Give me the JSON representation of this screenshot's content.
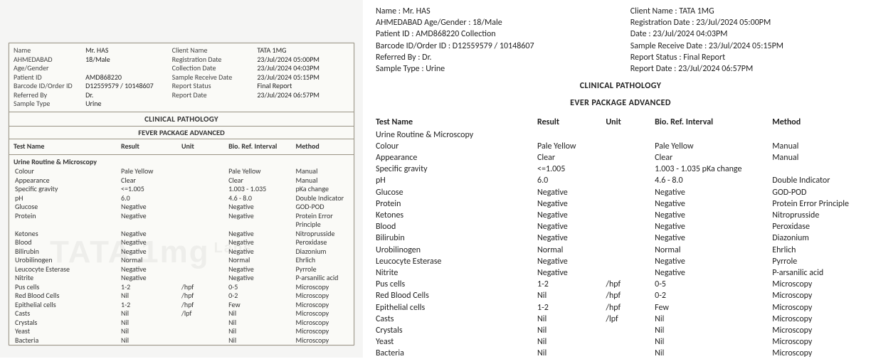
{
  "header": {
    "name_label": "Name",
    "name": "Mr. HAS",
    "age_gender_label": "AHMEDABAD  Age/Gender",
    "age_gender": "18/Male",
    "patient_id_label": "Patient ID",
    "patient_id": "AMD868220",
    "collection_label": "Collection",
    "barcode_label": "Barcode ID/Order ID",
    "barcode": "D12559579 / 10148607",
    "referred_label": "Referred By",
    "referred": "Dr.",
    "sample_label": "Sample Type",
    "sample": "Urine",
    "client_label": "Client Name",
    "client": "TATA 1MG",
    "reg_label": "Registration Date",
    "reg": "23/Jul/2024 05:00PM",
    "colldate_label": "Collection Date",
    "date_label": "Date",
    "colldate": "23/Jul/2024 04:03PM",
    "recv_label": "Sample Receive Date",
    "recv": "23/Jul/2024 05:15PM",
    "status_label": "Report Status",
    "status": "Final Report",
    "repdate_label": "Report Date",
    "repdate": "23/Jul/2024 06:57PM"
  },
  "right_header": {
    "name": "Name : Mr. HAS",
    "age": "AHMEDABAD  Age/Gender : 18/Male",
    "pid": "Patient ID : AMD868220 Collection",
    "barcode": "Barcode ID/Order ID : D12559579 / 10148607",
    "ref": "Referred By : Dr.",
    "sample": "Sample Type : Urine",
    "client": "Client Name : TATA 1MG",
    "reg": "Registration Date : 23/Jul/2024 05:00PM",
    "date": "Date : 23/Jul/2024 04:03PM",
    "recv": "Sample Receive Date : 23/Jul/2024 05:15PM",
    "status": "Report Status : Final Report",
    "repdate": "Report Date : 23/Jul/2024 06:57PM"
  },
  "titles": {
    "dept": "CLINICAL PATHOLOGY",
    "pkg_left": "FEVER PACKAGE ADVANCED",
    "pkg_right": "EVER PACKAGE ADVANCED",
    "section": "Urine Routine & Microscopy"
  },
  "cols": {
    "c1": "Test Name",
    "c2": "Result",
    "c3": "Unit",
    "c4": "Bio. Ref. Interval",
    "c5": "Method"
  },
  "tests": [
    {
      "name": "Colour",
      "result": "Pale Yellow",
      "unit": "",
      "ref": "Pale Yellow",
      "method": "Manual"
    },
    {
      "name": "Appearance",
      "result": "Clear",
      "unit": "",
      "ref": "Clear",
      "method": "Manual"
    },
    {
      "name": "Specific gravity",
      "result": "<=1.005",
      "unit": "",
      "ref": "1.003 - 1.035",
      "ref_right": "1.003 - 1.035  pKa change",
      "method": "pKa change",
      "method_right": ""
    },
    {
      "name": "pH",
      "result": "6.0",
      "unit": "",
      "ref": "4.6 - 8.0",
      "method": "Double Indicator"
    },
    {
      "name": "Glucose",
      "result": "Negative",
      "unit": "",
      "ref": "Negative",
      "method": "GOD-POD"
    },
    {
      "name": "Protein",
      "result": "Negative",
      "unit": "",
      "ref": "Negative",
      "method": "Protein Error Principle"
    },
    {
      "name": "Ketones",
      "result": "Negative",
      "unit": "",
      "ref": "Negative",
      "method": "Nitroprusside"
    },
    {
      "name": "Blood",
      "result": "Negative",
      "unit": "",
      "ref": "Negative",
      "method": "Peroxidase"
    },
    {
      "name": "Bilirubin",
      "result": "Negative",
      "unit": "",
      "ref": "Negative",
      "method": "Diazonium"
    },
    {
      "name": "Urobilinogen",
      "result": "Normal",
      "unit": "",
      "ref": "Normal",
      "method": "Ehrlich"
    },
    {
      "name": "Leucocyte Esterase",
      "result": "Negative",
      "unit": "",
      "ref": "Negative",
      "method": "Pyrrole"
    },
    {
      "name": "Nitrite",
      "result": "Negative",
      "unit": "",
      "ref": "Negative",
      "method": "P-arsanilic acid"
    },
    {
      "name": "Pus cells",
      "result": "1-2",
      "unit": "/hpf",
      "ref": "0-5",
      "method": "Microscopy"
    },
    {
      "name": "Red Blood Cells",
      "result": "Nil",
      "unit": "/hpf",
      "ref": "0-2",
      "method": "Microscopy"
    },
    {
      "name": "Epithelial cells",
      "result": "1-2",
      "unit": "/hpf",
      "ref": "Few",
      "method": "Microscopy"
    },
    {
      "name": "Casts",
      "result": "Nil",
      "unit": "/lpf",
      "ref": "Nil",
      "method": "Microscopy"
    },
    {
      "name": "Crystals",
      "result": "Nil",
      "unit": "",
      "ref": "Nil",
      "method": "Microscopy"
    },
    {
      "name": "Yeast",
      "result": "Nil",
      "unit": "",
      "ref": "Nil",
      "method": "Microscopy"
    },
    {
      "name": "Bacteria",
      "result": "Nil",
      "unit": "",
      "ref": "Nil",
      "method": "Microscopy"
    }
  ],
  "watermark": {
    "main": "TATA 1mg",
    "sub": "Labs"
  }
}
